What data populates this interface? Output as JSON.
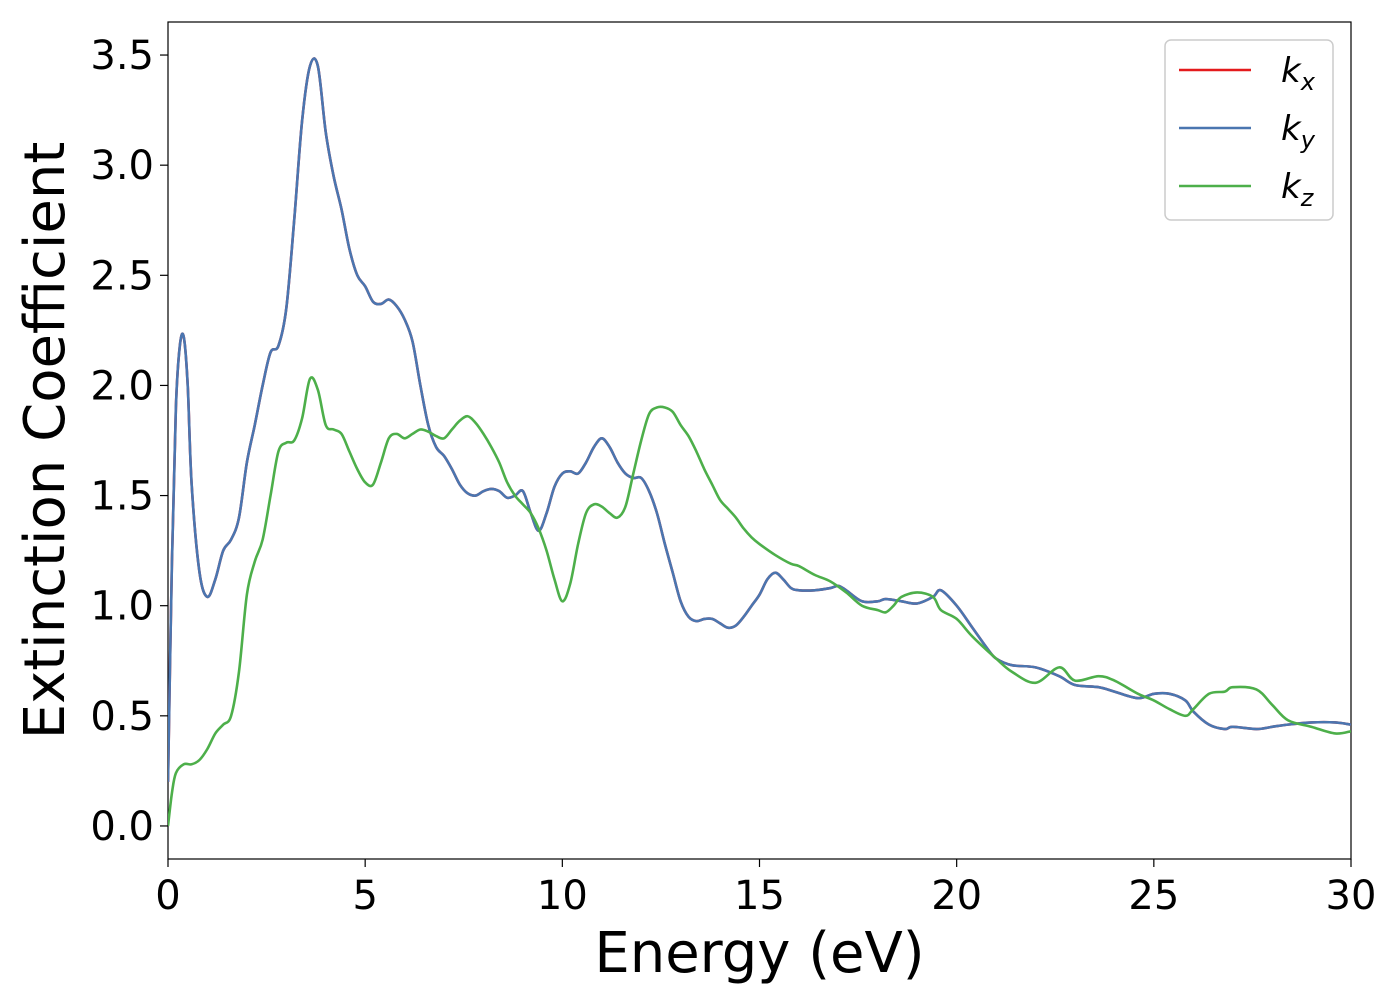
{
  "chart_data": {
    "type": "line",
    "title": "",
    "xlabel": "Energy (eV)",
    "ylabel": "Extinction Coefficient",
    "xlim": [
      0,
      30
    ],
    "ylim": [
      -0.15,
      3.65
    ],
    "xticks": [
      0,
      5,
      10,
      15,
      20,
      25,
      30
    ],
    "xtick_labels": [
      "0",
      "5",
      "10",
      "15",
      "20",
      "25",
      "30"
    ],
    "yticks": [
      0.0,
      0.5,
      1.0,
      1.5,
      2.0,
      2.5,
      3.0,
      3.5
    ],
    "ytick_labels": [
      "0.0",
      "0.5",
      "1.0",
      "1.5",
      "2.0",
      "2.5",
      "3.0",
      "3.5"
    ],
    "grid": false,
    "legend_position": "top-right",
    "series": [
      {
        "name": "k",
        "subscript": "x",
        "color": "#e41a1c",
        "x": [
          0,
          0.1,
          0.2,
          0.3,
          0.4,
          0.5,
          0.6,
          0.8,
          1.0,
          1.2,
          1.4,
          1.6,
          1.8,
          2.0,
          2.2,
          2.4,
          2.6,
          2.8,
          3.0,
          3.2,
          3.4,
          3.6,
          3.8,
          4.0,
          4.2,
          4.4,
          4.6,
          4.8,
          5.0,
          5.2,
          5.4,
          5.6,
          5.8,
          6.0,
          6.2,
          6.4,
          6.6,
          6.8,
          7.0,
          7.2,
          7.4,
          7.6,
          7.8,
          8.0,
          8.2,
          8.4,
          8.6,
          8.8,
          9.0,
          9.2,
          9.4,
          9.6,
          9.8,
          10.0,
          10.2,
          10.4,
          10.6,
          10.8,
          11.0,
          11.2,
          11.4,
          11.6,
          11.8,
          12.0,
          12.2,
          12.4,
          12.6,
          12.8,
          13.0,
          13.2,
          13.4,
          13.6,
          13.8,
          14.0,
          14.2,
          14.4,
          14.6,
          14.8,
          15.0,
          15.2,
          15.4,
          15.6,
          15.8,
          16.0,
          16.4,
          16.8,
          17.0,
          17.2,
          17.6,
          18.0,
          18.2,
          18.6,
          19.0,
          19.4,
          19.6,
          20.0,
          20.4,
          20.8,
          21.0,
          21.4,
          22.0,
          22.6,
          23.0,
          23.6,
          24.0,
          24.6,
          25.0,
          25.4,
          25.8,
          26.0,
          26.4,
          26.8,
          27.0,
          27.6,
          28.0,
          28.4,
          29.0,
          29.6,
          30.0
        ],
        "values": [
          0.2,
          1.2,
          1.9,
          2.18,
          2.22,
          2.0,
          1.55,
          1.15,
          1.04,
          1.12,
          1.25,
          1.3,
          1.4,
          1.65,
          1.82,
          2.0,
          2.15,
          2.18,
          2.35,
          2.75,
          3.2,
          3.45,
          3.45,
          3.15,
          2.95,
          2.8,
          2.62,
          2.5,
          2.45,
          2.38,
          2.37,
          2.39,
          2.36,
          2.3,
          2.2,
          2.0,
          1.82,
          1.72,
          1.68,
          1.62,
          1.55,
          1.51,
          1.5,
          1.52,
          1.53,
          1.52,
          1.49,
          1.5,
          1.52,
          1.42,
          1.34,
          1.42,
          1.54,
          1.6,
          1.61,
          1.6,
          1.65,
          1.72,
          1.76,
          1.72,
          1.65,
          1.6,
          1.58,
          1.58,
          1.52,
          1.42,
          1.28,
          1.15,
          1.02,
          0.95,
          0.93,
          0.94,
          0.94,
          0.92,
          0.9,
          0.91,
          0.95,
          1.0,
          1.05,
          1.12,
          1.15,
          1.12,
          1.08,
          1.07,
          1.07,
          1.08,
          1.09,
          1.07,
          1.02,
          1.02,
          1.03,
          1.02,
          1.01,
          1.04,
          1.07,
          1.0,
          0.9,
          0.8,
          0.76,
          0.73,
          0.72,
          0.68,
          0.64,
          0.63,
          0.61,
          0.58,
          0.6,
          0.6,
          0.57,
          0.52,
          0.46,
          0.44,
          0.45,
          0.44,
          0.45,
          0.46,
          0.47,
          0.47,
          0.46
        ]
      },
      {
        "name": "k",
        "subscript": "y",
        "color": "#4a76b0",
        "x": [
          0,
          0.1,
          0.2,
          0.3,
          0.4,
          0.5,
          0.6,
          0.8,
          1.0,
          1.2,
          1.4,
          1.6,
          1.8,
          2.0,
          2.2,
          2.4,
          2.6,
          2.8,
          3.0,
          3.2,
          3.4,
          3.6,
          3.8,
          4.0,
          4.2,
          4.4,
          4.6,
          4.8,
          5.0,
          5.2,
          5.4,
          5.6,
          5.8,
          6.0,
          6.2,
          6.4,
          6.6,
          6.8,
          7.0,
          7.2,
          7.4,
          7.6,
          7.8,
          8.0,
          8.2,
          8.4,
          8.6,
          8.8,
          9.0,
          9.2,
          9.4,
          9.6,
          9.8,
          10.0,
          10.2,
          10.4,
          10.6,
          10.8,
          11.0,
          11.2,
          11.4,
          11.6,
          11.8,
          12.0,
          12.2,
          12.4,
          12.6,
          12.8,
          13.0,
          13.2,
          13.4,
          13.6,
          13.8,
          14.0,
          14.2,
          14.4,
          14.6,
          14.8,
          15.0,
          15.2,
          15.4,
          15.6,
          15.8,
          16.0,
          16.4,
          16.8,
          17.0,
          17.2,
          17.6,
          18.0,
          18.2,
          18.6,
          19.0,
          19.4,
          19.6,
          20.0,
          20.4,
          20.8,
          21.0,
          21.4,
          22.0,
          22.6,
          23.0,
          23.6,
          24.0,
          24.6,
          25.0,
          25.4,
          25.8,
          26.0,
          26.4,
          26.8,
          27.0,
          27.6,
          28.0,
          28.4,
          29.0,
          29.6,
          30.0
        ],
        "values": [
          0.2,
          1.2,
          1.9,
          2.18,
          2.22,
          2.0,
          1.55,
          1.15,
          1.04,
          1.12,
          1.25,
          1.3,
          1.4,
          1.65,
          1.82,
          2.0,
          2.15,
          2.18,
          2.35,
          2.75,
          3.2,
          3.45,
          3.45,
          3.15,
          2.95,
          2.8,
          2.62,
          2.5,
          2.45,
          2.38,
          2.37,
          2.39,
          2.36,
          2.3,
          2.2,
          2.0,
          1.82,
          1.72,
          1.68,
          1.62,
          1.55,
          1.51,
          1.5,
          1.52,
          1.53,
          1.52,
          1.49,
          1.5,
          1.52,
          1.42,
          1.34,
          1.42,
          1.54,
          1.6,
          1.61,
          1.6,
          1.65,
          1.72,
          1.76,
          1.72,
          1.65,
          1.6,
          1.58,
          1.58,
          1.52,
          1.42,
          1.28,
          1.15,
          1.02,
          0.95,
          0.93,
          0.94,
          0.94,
          0.92,
          0.9,
          0.91,
          0.95,
          1.0,
          1.05,
          1.12,
          1.15,
          1.12,
          1.08,
          1.07,
          1.07,
          1.08,
          1.09,
          1.07,
          1.02,
          1.02,
          1.03,
          1.02,
          1.01,
          1.04,
          1.07,
          1.0,
          0.9,
          0.8,
          0.76,
          0.73,
          0.72,
          0.68,
          0.64,
          0.63,
          0.61,
          0.58,
          0.6,
          0.6,
          0.57,
          0.52,
          0.46,
          0.44,
          0.45,
          0.44,
          0.45,
          0.46,
          0.47,
          0.47,
          0.46
        ]
      },
      {
        "name": "k",
        "subscript": "z",
        "color": "#4daf4a",
        "x": [
          0,
          0.1,
          0.2,
          0.4,
          0.6,
          0.8,
          1.0,
          1.2,
          1.4,
          1.6,
          1.8,
          2.0,
          2.2,
          2.4,
          2.6,
          2.8,
          3.0,
          3.2,
          3.4,
          3.6,
          3.8,
          4.0,
          4.2,
          4.4,
          4.6,
          4.8,
          5.0,
          5.2,
          5.4,
          5.6,
          5.8,
          6.0,
          6.2,
          6.4,
          6.6,
          6.8,
          7.0,
          7.2,
          7.4,
          7.6,
          7.8,
          8.0,
          8.2,
          8.4,
          8.6,
          8.8,
          9.0,
          9.2,
          9.4,
          9.6,
          9.8,
          10.0,
          10.2,
          10.4,
          10.6,
          10.8,
          11.0,
          11.2,
          11.4,
          11.6,
          11.8,
          12.0,
          12.2,
          12.4,
          12.6,
          12.8,
          13.0,
          13.2,
          13.4,
          13.6,
          13.8,
          14.0,
          14.2,
          14.4,
          14.6,
          14.8,
          15.0,
          15.4,
          15.8,
          16.0,
          16.4,
          16.8,
          17.2,
          17.6,
          18.0,
          18.2,
          18.4,
          18.6,
          19.0,
          19.4,
          19.6,
          20.0,
          20.4,
          21.0,
          21.4,
          22.0,
          22.6,
          23.0,
          23.6,
          24.0,
          24.6,
          25.0,
          25.4,
          25.8,
          26.0,
          26.4,
          26.8,
          27.0,
          27.6,
          28.0,
          28.4,
          29.0,
          29.6,
          30.0
        ],
        "values": [
          0.0,
          0.15,
          0.24,
          0.28,
          0.28,
          0.3,
          0.35,
          0.42,
          0.46,
          0.5,
          0.7,
          1.05,
          1.2,
          1.3,
          1.5,
          1.7,
          1.74,
          1.75,
          1.85,
          2.03,
          1.98,
          1.82,
          1.8,
          1.78,
          1.7,
          1.62,
          1.56,
          1.55,
          1.65,
          1.76,
          1.78,
          1.76,
          1.78,
          1.8,
          1.79,
          1.77,
          1.76,
          1.8,
          1.84,
          1.86,
          1.83,
          1.78,
          1.72,
          1.65,
          1.56,
          1.5,
          1.46,
          1.42,
          1.35,
          1.25,
          1.12,
          1.02,
          1.1,
          1.28,
          1.42,
          1.46,
          1.45,
          1.42,
          1.4,
          1.45,
          1.6,
          1.75,
          1.87,
          1.9,
          1.9,
          1.88,
          1.82,
          1.77,
          1.7,
          1.62,
          1.55,
          1.48,
          1.44,
          1.4,
          1.35,
          1.31,
          1.28,
          1.23,
          1.19,
          1.18,
          1.14,
          1.11,
          1.06,
          1.0,
          0.98,
          0.97,
          1.0,
          1.04,
          1.06,
          1.04,
          0.98,
          0.94,
          0.86,
          0.76,
          0.7,
          0.65,
          0.72,
          0.66,
          0.68,
          0.66,
          0.6,
          0.57,
          0.53,
          0.5,
          0.53,
          0.6,
          0.61,
          0.63,
          0.62,
          0.55,
          0.48,
          0.45,
          0.42,
          0.43
        ]
      }
    ]
  }
}
